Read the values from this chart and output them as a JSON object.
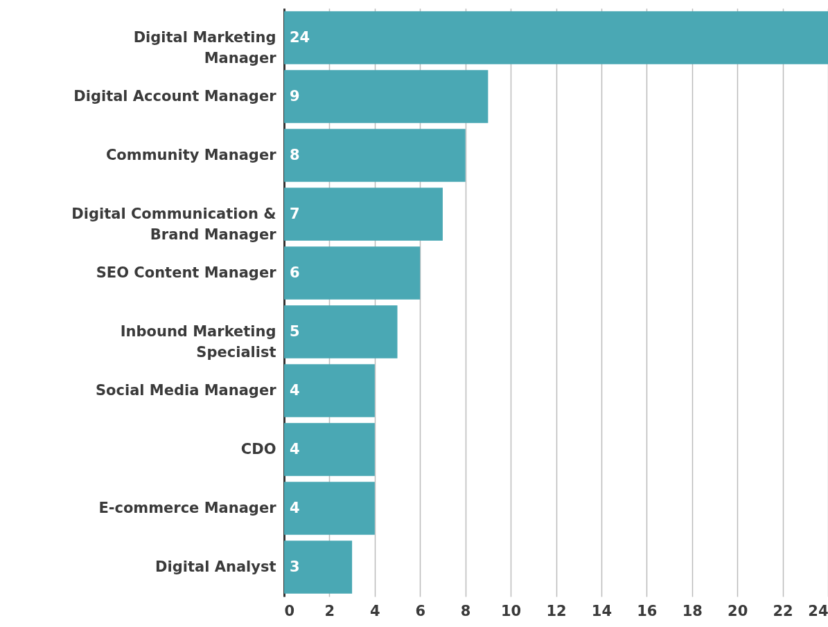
{
  "chart_data": {
    "type": "bar",
    "orientation": "horizontal",
    "categories": [
      "Digital Marketing Manager",
      "Digital Account Manager",
      "Community Manager",
      "Digital Communication & Brand Manager",
      "SEO Content Manager",
      "Inbound Marketing Specialist",
      "Social Media Manager",
      "CDO",
      "E-commerce Manager",
      "Digital Analyst"
    ],
    "values": [
      24,
      9,
      8,
      7,
      6,
      5,
      4,
      4,
      4,
      3
    ],
    "color": "#4aa8b4",
    "xlim": [
      0,
      24
    ],
    "xticks": [
      0,
      2,
      4,
      6,
      8,
      10,
      12,
      14,
      16,
      18,
      20,
      22,
      24
    ],
    "grid": "x",
    "data_labels": true
  }
}
